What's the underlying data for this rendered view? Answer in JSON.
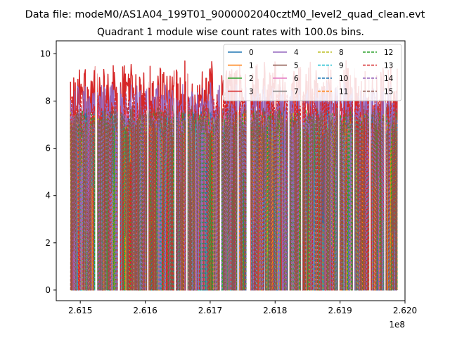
{
  "chart_data": {
    "type": "line",
    "suptitle": "Data file: modeM0/AS1A04_199T01_9000002040cztM0_level2_quad_clean.evt",
    "title": "Quadrant 1 module wise count rates with 100.0s bins.",
    "xlabel": "",
    "ylabel": "",
    "x_offset_label": "1e8",
    "xlim": [
      2.61463,
      2.62
    ],
    "ylim": [
      -0.45,
      10.55
    ],
    "data_start": 2.61485,
    "data_end": 2.61988,
    "xticks": [
      2.615,
      2.616,
      2.617,
      2.618,
      2.619,
      2.62
    ],
    "xtick_labels": [
      "2.615",
      "2.616",
      "2.617",
      "2.618",
      "2.619",
      "2.620"
    ],
    "yticks": [
      0,
      2,
      4,
      6,
      8,
      10
    ],
    "ytick_labels": [
      "0",
      "2",
      "4",
      "6",
      "8",
      "10"
    ],
    "legend_position": "top-right",
    "legend_columns": 4,
    "gaps": [
      [
        2.61523,
        2.61526
      ],
      [
        2.61558,
        2.61561
      ],
      [
        2.61603,
        2.61605
      ],
      [
        2.61645,
        2.61647
      ],
      [
        2.61663,
        2.61665
      ],
      [
        2.61715,
        2.61717
      ],
      [
        2.61742,
        2.61744
      ],
      [
        2.61756,
        2.61762
      ],
      [
        2.6182,
        2.61822
      ],
      [
        2.6184,
        2.61842
      ],
      [
        2.61897,
        2.61899
      ],
      [
        2.6192,
        2.61922
      ],
      [
        2.61945,
        2.61947
      ],
      [
        2.61968,
        2.6197
      ]
    ],
    "series": [
      {
        "name": "0",
        "color": "#1f77b4",
        "style": "solid",
        "level": 6.9,
        "peak": 7.4
      },
      {
        "name": "1",
        "color": "#ff7f0e",
        "style": "solid",
        "level": 6.7,
        "peak": 7.2
      },
      {
        "name": "2",
        "color": "#2ca02c",
        "style": "solid",
        "level": 7.0,
        "peak": 7.5
      },
      {
        "name": "3",
        "color": "#d62728",
        "style": "solid",
        "level": 8.1,
        "peak": 9.5
      },
      {
        "name": "4",
        "color": "#9467bd",
        "style": "solid",
        "level": 7.7,
        "peak": 8.6
      },
      {
        "name": "5",
        "color": "#8c564b",
        "style": "solid",
        "level": 6.9,
        "peak": 7.6
      },
      {
        "name": "6",
        "color": "#e377c2",
        "style": "solid",
        "level": 6.8,
        "peak": 7.4
      },
      {
        "name": "7",
        "color": "#7f7f7f",
        "style": "solid",
        "level": 6.6,
        "peak": 7.2
      },
      {
        "name": "8",
        "color": "#bcbd22",
        "style": "dashed",
        "level": 6.8,
        "peak": 7.3
      },
      {
        "name": "9",
        "color": "#17becf",
        "style": "dashed",
        "level": 6.7,
        "peak": 7.2
      },
      {
        "name": "10",
        "color": "#1f77b4",
        "style": "dashed",
        "level": 6.9,
        "peak": 7.4
      },
      {
        "name": "11",
        "color": "#ff7f0e",
        "style": "dashed",
        "level": 6.8,
        "peak": 7.3
      },
      {
        "name": "12",
        "color": "#2ca02c",
        "style": "dashed",
        "level": 6.9,
        "peak": 7.4
      },
      {
        "name": "13",
        "color": "#d62728",
        "style": "dashed",
        "level": 7.3,
        "peak": 8.2
      },
      {
        "name": "14",
        "color": "#9467bd",
        "style": "dashed",
        "level": 7.0,
        "peak": 7.7
      },
      {
        "name": "15",
        "color": "#8c564b",
        "style": "dashed",
        "level": 6.9,
        "peak": 7.6
      }
    ]
  }
}
